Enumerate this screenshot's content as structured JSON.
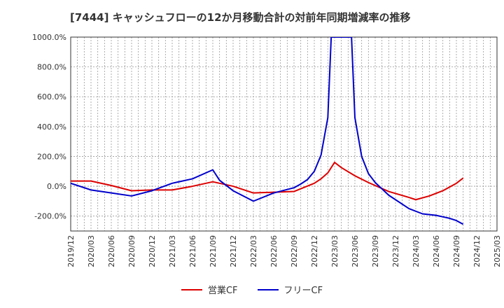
{
  "chart_data": {
    "type": "line",
    "title": "[7444]  キャッシュフローの12か月移動合計の対前年同期増減率の推移",
    "xlabel": "",
    "ylabel": "",
    "ylim": [
      -300,
      1000
    ],
    "yticks": [
      1000,
      800,
      600,
      400,
      200,
      0,
      -200
    ],
    "ytick_labels": [
      "1000.0%",
      "800.0%",
      "600.0%",
      "400.0%",
      "200.0%",
      "0.0%",
      "-200.0%"
    ],
    "x_tick_labels": [
      "2019/12",
      "2020/03",
      "2020/06",
      "2020/09",
      "2020/12",
      "2021/03",
      "2021/06",
      "2021/09",
      "2021/12",
      "2022/03",
      "2022/06",
      "2022/09",
      "2022/12",
      "2023/03",
      "2023/06",
      "2023/09",
      "2023/12",
      "2024/03",
      "2024/06",
      "2024/09",
      "2024/12",
      "2025/03"
    ],
    "x_count": 64,
    "grid": true,
    "legend_position": "bottom",
    "series": [
      {
        "name": "営業CF",
        "color": "#dd0000",
        "points": [
          [
            0,
            35
          ],
          [
            3,
            35
          ],
          [
            6,
            5
          ],
          [
            9,
            -30
          ],
          [
            12,
            -25
          ],
          [
            15,
            -25
          ],
          [
            18,
            0
          ],
          [
            21,
            30
          ],
          [
            24,
            0
          ],
          [
            27,
            -45
          ],
          [
            30,
            -40
          ],
          [
            33,
            -35
          ],
          [
            36,
            20
          ],
          [
            37,
            50
          ],
          [
            38,
            90
          ],
          [
            39,
            160
          ],
          [
            40,
            125
          ],
          [
            42,
            70
          ],
          [
            44,
            25
          ],
          [
            47,
            -35
          ],
          [
            50,
            -75
          ],
          [
            51,
            -90
          ],
          [
            53,
            -65
          ],
          [
            55,
            -30
          ],
          [
            57,
            20
          ],
          [
            58,
            55
          ]
        ]
      },
      {
        "name": "フリーCF",
        "color": "#0000cc",
        "points": [
          [
            0,
            20
          ],
          [
            3,
            -25
          ],
          [
            6,
            -45
          ],
          [
            9,
            -65
          ],
          [
            12,
            -30
          ],
          [
            15,
            20
          ],
          [
            18,
            50
          ],
          [
            21,
            110
          ],
          [
            22,
            40
          ],
          [
            24,
            -30
          ],
          [
            27,
            -100
          ],
          [
            30,
            -45
          ],
          [
            33,
            -10
          ],
          [
            34,
            15
          ],
          [
            35,
            45
          ],
          [
            36,
            100
          ],
          [
            37,
            210
          ],
          [
            38,
            460
          ],
          [
            38.5,
            1000
          ],
          [
            41.5,
            1000
          ],
          [
            42,
            460
          ],
          [
            43,
            200
          ],
          [
            44,
            85
          ],
          [
            45,
            25
          ],
          [
            47,
            -60
          ],
          [
            50,
            -150
          ],
          [
            52,
            -185
          ],
          [
            54,
            -195
          ],
          [
            56,
            -215
          ],
          [
            57,
            -230
          ],
          [
            58,
            -255
          ]
        ]
      }
    ]
  }
}
